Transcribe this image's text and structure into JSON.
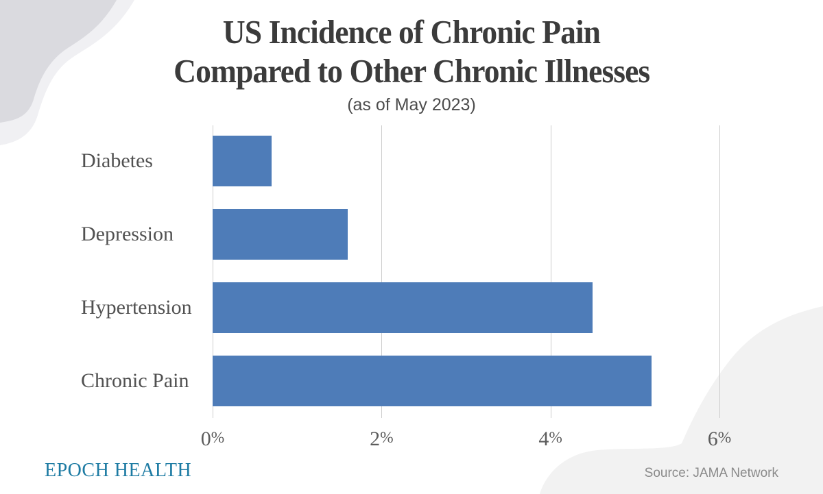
{
  "header": {
    "title_line1": "US Incidence of Chronic Pain",
    "title_line2": "Compared to Other Chronic Illnesses",
    "subtitle": "(as of May 2023)"
  },
  "chart_data": {
    "type": "bar",
    "orientation": "horizontal",
    "title": "US Incidence of Chronic Pain Compared to Other Chronic Illnesses",
    "subtitle": "(as of May 2023)",
    "categories": [
      "Diabetes",
      "Depression",
      "Hypertension",
      "Chronic Pain"
    ],
    "values": [
      0.7,
      1.6,
      4.5,
      5.2
    ],
    "unit": "%",
    "xlabel": "",
    "ylabel": "",
    "xlim": [
      0,
      6
    ],
    "x_ticks": [
      {
        "value": 0,
        "label": "0%"
      },
      {
        "value": 2,
        "label": "2%"
      },
      {
        "value": 4,
        "label": "4%"
      },
      {
        "value": 6,
        "label": "6%"
      }
    ],
    "grid": "vertical gridlines at each x tick",
    "legend": "none",
    "bar_color": "#4e7cb8"
  },
  "footer": {
    "brand": "EPOCH HEALTH",
    "source": "Source: JAMA Network"
  },
  "colors": {
    "bar": "#4e7cb8",
    "brand": "#1d7ba3",
    "title": "#3b3b3b",
    "subtitle": "#4c4c4c",
    "label": "#515151",
    "tick": "#5c5c5c",
    "grid": "#cccccc",
    "source": "#8a8a8a",
    "blobLight": "#f0f0f3",
    "blobDark": "#dadadf",
    "blobCorner": "#f2f2f2",
    "background": "#ffffff"
  }
}
